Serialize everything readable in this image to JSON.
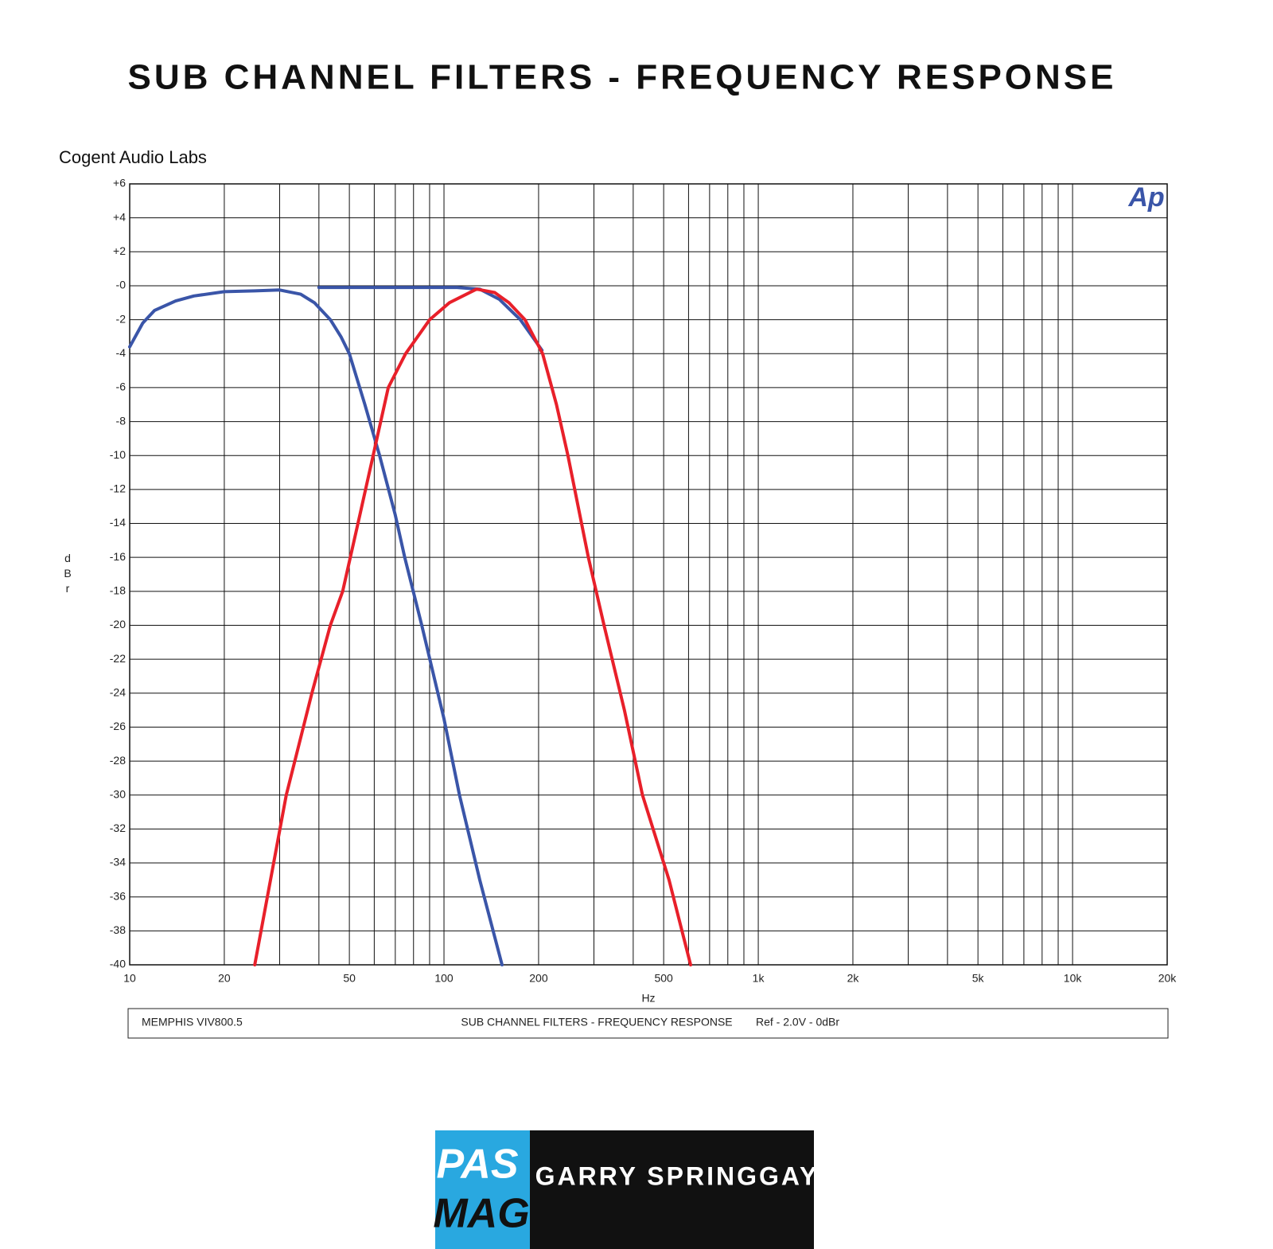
{
  "chart_data": {
    "type": "line",
    "title": "SUB CHANNEL FILTERS - FREQUENCY RESPONSE",
    "source": "Cogent Audio Labs",
    "logo_text": "Ap",
    "xlabel": "Hz",
    "ylabel": "dBr",
    "xscale": "log",
    "grid": true,
    "xlim": [
      10,
      20000
    ],
    "ylim": [
      -40,
      6
    ],
    "xticks": [
      10,
      20,
      50,
      100,
      200,
      500,
      {
        "value": 1000,
        "label": "1k"
      },
      {
        "value": 2000,
        "label": "2k"
      },
      {
        "value": 5000,
        "label": "5k"
      },
      {
        "value": 10000,
        "label": "10k"
      },
      {
        "value": 20000,
        "label": "20k"
      }
    ],
    "xminor": [
      30,
      40,
      60,
      70,
      80,
      90,
      300,
      400,
      600,
      700,
      800,
      900,
      3000,
      4000,
      6000,
      7000,
      8000,
      9000
    ],
    "yticks": [
      {
        "value": 6,
        "label": "+6"
      },
      {
        "value": 4,
        "label": "+4"
      },
      {
        "value": 2,
        "label": "+2"
      },
      {
        "value": 0,
        "label": "-0"
      },
      -2,
      -4,
      -6,
      -8,
      -10,
      -12,
      -14,
      -16,
      -18,
      -20,
      -22,
      -24,
      -26,
      -28,
      -30,
      -32,
      -34,
      -36,
      -38,
      -40
    ],
    "series": [
      {
        "color": "#3a55a8",
        "x": [
          10,
          11,
          12,
          14,
          16,
          20,
          25,
          30,
          35,
          38.7,
          43.5,
          47,
          50,
          56,
          62.4,
          70,
          75,
          85,
          100,
          112,
          130,
          153
        ],
        "values": [
          -3.6,
          -2.2,
          -1.45,
          -0.9,
          -0.6,
          -0.35,
          -0.3,
          -0.25,
          -0.5,
          -1,
          -2,
          -3,
          -4,
          -7,
          -10,
          -13.5,
          -16,
          -20,
          -25.5,
          -30,
          -35,
          -40
        ]
      },
      {
        "color": "#3a55a8",
        "x": [
          40,
          70,
          110,
          130,
          150,
          175,
          205
        ],
        "values": [
          -0.1,
          -0.1,
          -0.1,
          -0.2,
          -0.8,
          -2,
          -3.8
        ]
      },
      {
        "color": "#e8202a",
        "x": [
          25,
          31.5,
          38,
          43.5,
          47.6,
          54,
          59.5,
          66.5,
          75.5,
          90,
          104,
          127,
          145,
          161,
          181,
          206,
          228,
          248,
          288,
          323,
          375,
          428,
          520,
          609
        ],
        "values": [
          -40,
          -30,
          -24,
          -20,
          -18,
          -13.5,
          -10,
          -6,
          -4,
          -2,
          -1,
          -0.2,
          -0.4,
          -1,
          -2,
          -4,
          -7,
          -10,
          -16,
          -20,
          -25,
          -30,
          -35,
          -40
        ]
      }
    ],
    "footer": {
      "left": "MEMPHIS  VIV800.5",
      "center": "SUB CHANNEL FILTERS -  FREQUENCY RESPONSE",
      "right": "Ref - 2.0V - 0dBr"
    },
    "brand": {
      "top": "PAS",
      "bottom": "MAG",
      "author": "GARRY SPRINGGAY"
    }
  }
}
